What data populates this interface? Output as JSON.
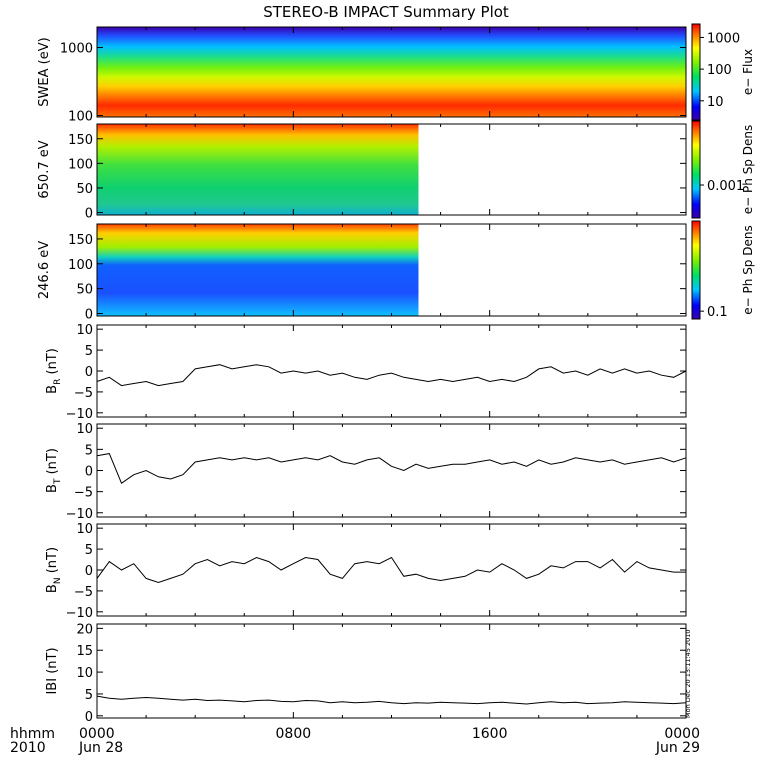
{
  "title": "STEREO-B IMPACT Summary Plot",
  "stamp": "Mon Dec 20 13:11:45 2010",
  "time_axis": {
    "row_label_1": "hhmm",
    "row_label_2": "2010",
    "ticks": [
      {
        "hours": 0,
        "label": "0000",
        "sublabel": "Jun 28"
      },
      {
        "hours": 8,
        "label": "0800",
        "sublabel": ""
      },
      {
        "hours": 16,
        "label": "1600",
        "sublabel": ""
      },
      {
        "hours": 24,
        "label": "0000",
        "sublabel": "Jun 29"
      }
    ],
    "range_hours": [
      0,
      24
    ]
  },
  "colors": {
    "colormap": [
      "#3a00a8",
      "#0000ff",
      "#00c8ff",
      "#00e060",
      "#80f000",
      "#ffff00",
      "#ff8000",
      "#ff0000"
    ],
    "line": "#000000"
  },
  "chart_data": [
    {
      "type": "heatmap",
      "ylabel": "SWEA (eV)",
      "yscale": "log",
      "ylim": [
        95,
        2000
      ],
      "yticks": [
        {
          "v": 100,
          "label": "100"
        },
        {
          "v": 1000,
          "label": "1000"
        }
      ],
      "data_hours": [
        0,
        24
      ],
      "colorbar": {
        "label": "e− Flux",
        "ticks": [
          {
            "level": 0.86,
            "label": "1000"
          },
          {
            "level": 0.53,
            "label": "100"
          },
          {
            "level": 0.2,
            "label": "10"
          }
        ]
      }
    },
    {
      "type": "heatmap",
      "ylabel": "650.7 eV",
      "ylim": [
        -5,
        180
      ],
      "yticks": [
        {
          "v": 0,
          "label": "0"
        },
        {
          "v": 50,
          "label": "50"
        },
        {
          "v": 100,
          "label": "100"
        },
        {
          "v": 150,
          "label": "150"
        }
      ],
      "data_hours": [
        0,
        13.1
      ],
      "colorbar": {
        "label": "e− Ph Sp Dens",
        "ticks": [
          {
            "level": 0.34,
            "label": "0.001"
          }
        ]
      }
    },
    {
      "type": "heatmap",
      "ylabel": "246.6 eV",
      "ylim": [
        -5,
        180
      ],
      "yticks": [
        {
          "v": 0,
          "label": "0"
        },
        {
          "v": 50,
          "label": "50"
        },
        {
          "v": 100,
          "label": "100"
        },
        {
          "v": 150,
          "label": "150"
        }
      ],
      "data_hours": [
        0,
        13.1
      ],
      "colorbar": {
        "label": "e− Ph Sp Dens",
        "ticks": [
          {
            "level": 0.08,
            "label": "0.1"
          }
        ]
      }
    },
    {
      "type": "line",
      "ylabel_main": "B",
      "ylabel_sub": "R",
      "ylabel_unit": "(nT)",
      "ylim": [
        -11,
        11
      ],
      "yticks": [
        {
          "v": -10,
          "label": "−10"
        },
        {
          "v": -5,
          "label": "−5"
        },
        {
          "v": 0,
          "label": "0"
        },
        {
          "v": 5,
          "label": "5"
        },
        {
          "v": 10,
          "label": "10"
        }
      ],
      "x": [
        0,
        0.5,
        1,
        1.5,
        2,
        2.5,
        3,
        3.5,
        4,
        4.5,
        5,
        5.5,
        6,
        6.5,
        7,
        7.5,
        8,
        8.5,
        9,
        9.5,
        10,
        10.5,
        11,
        11.5,
        12,
        12.5,
        13,
        13.5,
        14,
        14.5,
        15,
        15.5,
        16,
        16.5,
        17,
        17.5,
        18,
        18.5,
        19,
        19.5,
        20,
        20.5,
        21,
        21.5,
        22,
        22.5,
        23,
        23.5,
        24
      ],
      "y": [
        -2.5,
        -1.5,
        -3.5,
        -3,
        -2.5,
        -3.5,
        -3,
        -2.5,
        0.5,
        1,
        1.5,
        0.5,
        1,
        1.5,
        1,
        -0.5,
        0,
        -0.5,
        0,
        -1,
        -0.5,
        -1.5,
        -2,
        -1,
        -0.5,
        -1.5,
        -2,
        -2.5,
        -2,
        -2.5,
        -2,
        -1.5,
        -2.5,
        -2,
        -2.5,
        -1.5,
        0.5,
        1,
        -0.5,
        0,
        -1,
        0.5,
        -0.5,
        0.5,
        -0.5,
        0,
        -1,
        -1.5,
        0
      ]
    },
    {
      "type": "line",
      "ylabel_main": "B",
      "ylabel_sub": "T",
      "ylabel_unit": "(nT)",
      "ylim": [
        -11,
        11
      ],
      "yticks": [
        {
          "v": -10,
          "label": "−10"
        },
        {
          "v": -5,
          "label": "−5"
        },
        {
          "v": 0,
          "label": "0"
        },
        {
          "v": 5,
          "label": "5"
        },
        {
          "v": 10,
          "label": "10"
        }
      ],
      "x": [
        0,
        0.5,
        1,
        1.5,
        2,
        2.5,
        3,
        3.5,
        4,
        4.5,
        5,
        5.5,
        6,
        6.5,
        7,
        7.5,
        8,
        8.5,
        9,
        9.5,
        10,
        10.5,
        11,
        11.5,
        12,
        12.5,
        13,
        13.5,
        14,
        14.5,
        15,
        15.5,
        16,
        16.5,
        17,
        17.5,
        18,
        18.5,
        19,
        19.5,
        20,
        20.5,
        21,
        21.5,
        22,
        22.5,
        23,
        23.5,
        24
      ],
      "y": [
        3.5,
        4,
        -3,
        -1,
        0,
        -1.5,
        -2,
        -1,
        2,
        2.5,
        3,
        2.5,
        3,
        2.5,
        3,
        2,
        2.5,
        3,
        2.5,
        3.5,
        2,
        1.5,
        2.5,
        3,
        1,
        0,
        1.5,
        0.5,
        1,
        1.5,
        1.5,
        2,
        2.5,
        1.5,
        2,
        1,
        2.5,
        1.5,
        2,
        3,
        2.5,
        2,
        2.5,
        1.5,
        2,
        2.5,
        3,
        2,
        3
      ]
    },
    {
      "type": "line",
      "ylabel_main": "B",
      "ylabel_sub": "N",
      "ylabel_unit": "(nT)",
      "ylim": [
        -11,
        11
      ],
      "yticks": [
        {
          "v": -10,
          "label": "−10"
        },
        {
          "v": -5,
          "label": "−5"
        },
        {
          "v": 0,
          "label": "0"
        },
        {
          "v": 5,
          "label": "5"
        },
        {
          "v": 10,
          "label": "10"
        }
      ],
      "x": [
        0,
        0.5,
        1,
        1.5,
        2,
        2.5,
        3,
        3.5,
        4,
        4.5,
        5,
        5.5,
        6,
        6.5,
        7,
        7.5,
        8,
        8.5,
        9,
        9.5,
        10,
        10.5,
        11,
        11.5,
        12,
        12.5,
        13,
        13.5,
        14,
        14.5,
        15,
        15.5,
        16,
        16.5,
        17,
        17.5,
        18,
        18.5,
        19,
        19.5,
        20,
        20.5,
        21,
        21.5,
        22,
        22.5,
        23,
        23.5,
        24
      ],
      "y": [
        -2,
        2,
        0,
        1.5,
        -2,
        -3,
        -2,
        -1,
        1.5,
        2.5,
        1,
        2,
        1.5,
        3,
        2,
        0,
        1.5,
        3,
        2.5,
        -1,
        -2,
        1.5,
        2,
        1.5,
        3,
        -1.5,
        -1,
        -2,
        -2.5,
        -2,
        -1.5,
        0,
        -0.5,
        1.5,
        0,
        -2,
        -1,
        1,
        0.5,
        2,
        2,
        0.5,
        2.5,
        -0.5,
        2,
        0.5,
        0,
        -0.5,
        -0.5
      ]
    },
    {
      "type": "line",
      "ylabel_main": "IBI",
      "ylabel_sub": "",
      "ylabel_unit": "(nT)",
      "ylim": [
        -0.5,
        21
      ],
      "yticks": [
        {
          "v": 0,
          "label": "0"
        },
        {
          "v": 5,
          "label": "5"
        },
        {
          "v": 10,
          "label": "10"
        },
        {
          "v": 15,
          "label": "15"
        },
        {
          "v": 20,
          "label": "20"
        }
      ],
      "x": [
        0,
        0.5,
        1,
        1.5,
        2,
        2.5,
        3,
        3.5,
        4,
        4.5,
        5,
        5.5,
        6,
        6.5,
        7,
        7.5,
        8,
        8.5,
        9,
        9.5,
        10,
        10.5,
        11,
        11.5,
        12,
        12.5,
        13,
        13.5,
        14,
        14.5,
        15,
        15.5,
        16,
        16.5,
        17,
        17.5,
        18,
        18.5,
        19,
        19.5,
        20,
        20.5,
        21,
        21.5,
        22,
        22.5,
        23,
        23.5,
        24
      ],
      "y": [
        4.5,
        4,
        3.8,
        4,
        4.2,
        4,
        3.8,
        3.6,
        3.8,
        3.5,
        3.6,
        3.4,
        3.2,
        3.5,
        3.6,
        3.3,
        3.2,
        3.5,
        3.4,
        3,
        3.2,
        3,
        3.1,
        3.3,
        3,
        2.8,
        3,
        2.9,
        3.1,
        3,
        2.9,
        2.8,
        3,
        3.1,
        2.9,
        2.7,
        3,
        3.2,
        3,
        3.1,
        2.8,
        2.9,
        3,
        3.2,
        3.1,
        3,
        2.9,
        2.8,
        3
      ]
    }
  ]
}
